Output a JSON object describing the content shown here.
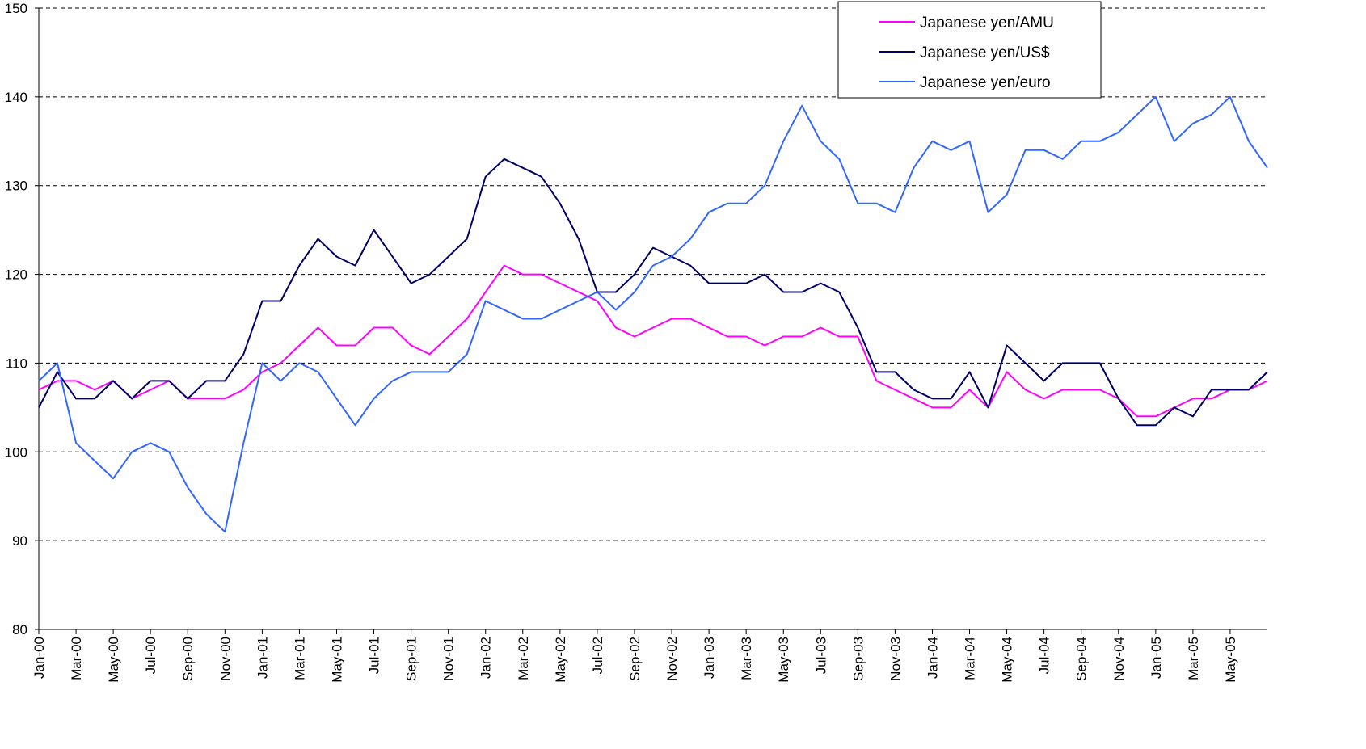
{
  "chart_data": {
    "type": "line",
    "categories": [
      "Jan-00",
      null,
      "Mar-00",
      null,
      "May-00",
      null,
      "Jul-00",
      null,
      "Sep-00",
      null,
      "Nov-00",
      null,
      "Jan-01",
      null,
      "Mar-01",
      null,
      "May-01",
      null,
      "Jul-01",
      null,
      "Sep-01",
      null,
      "Nov-01",
      null,
      "Jan-02",
      null,
      "Mar-02",
      null,
      "May-02",
      null,
      "Jul-02",
      null,
      "Sep-02",
      null,
      "Nov-02",
      null,
      "Jan-03",
      null,
      "Mar-03",
      null,
      "May-03",
      null,
      "Jul-03",
      null,
      "Sep-03",
      null,
      "Nov-03",
      null,
      "Jan-04",
      null,
      "Mar-04",
      null,
      "May-04",
      null,
      "Jul-04",
      null,
      "Sep-04",
      null,
      "Nov-04",
      null,
      "Jan-05",
      null,
      "Mar-05",
      null,
      "May-05",
      null,
      null
    ],
    "series": [
      {
        "name": "Japanese yen/AMU",
        "color": "#ff00ff",
        "values": [
          107,
          108,
          108,
          107,
          108,
          106,
          107,
          108,
          106,
          106,
          106,
          107,
          109,
          110,
          112,
          114,
          112,
          112,
          114,
          114,
          112,
          111,
          113,
          115,
          118,
          121,
          120,
          120,
          119,
          118,
          117,
          114,
          113,
          114,
          115,
          115,
          114,
          113,
          113,
          112,
          113,
          113,
          114,
          113,
          113,
          108,
          107,
          106,
          105,
          105,
          107,
          105,
          109,
          107,
          106,
          107,
          107,
          107,
          106,
          104,
          104,
          105,
          106,
          106,
          107,
          107,
          108
        ]
      },
      {
        "name": "Japanese yen/US$",
        "color": "#000066",
        "values": [
          105,
          109,
          106,
          106,
          108,
          106,
          108,
          108,
          106,
          108,
          108,
          111,
          117,
          117,
          121,
          124,
          122,
          121,
          125,
          122,
          119,
          120,
          122,
          124,
          131,
          133,
          132,
          131,
          128,
          124,
          118,
          118,
          120,
          123,
          122,
          121,
          119,
          119,
          119,
          120,
          118,
          118,
          119,
          118,
          114,
          109,
          109,
          107,
          106,
          106,
          109,
          105,
          112,
          110,
          108,
          110,
          110,
          110,
          106,
          103,
          103,
          105,
          104,
          107,
          107,
          107,
          109
        ]
      },
      {
        "name": "Japanese yen/euro",
        "color": "#3366ff",
        "values": [
          108,
          110,
          101,
          99,
          97,
          100,
          101,
          100,
          96,
          93,
          91,
          101,
          110,
          108,
          110,
          109,
          106,
          103,
          106,
          108,
          109,
          109,
          109,
          111,
          117,
          116,
          115,
          115,
          116,
          117,
          118,
          116,
          118,
          121,
          122,
          124,
          127,
          128,
          128,
          130,
          135,
          139,
          135,
          133,
          128,
          128,
          127,
          132,
          135,
          134,
          135,
          127,
          129,
          134,
          134,
          133,
          135,
          135,
          136,
          138,
          140,
          135,
          137,
          138,
          140,
          135,
          132
        ]
      }
    ],
    "ylim": [
      80,
      150
    ],
    "yticks": [
      80,
      90,
      100,
      110,
      120,
      130,
      140,
      150
    ],
    "grid": true,
    "legend": "top-right"
  }
}
